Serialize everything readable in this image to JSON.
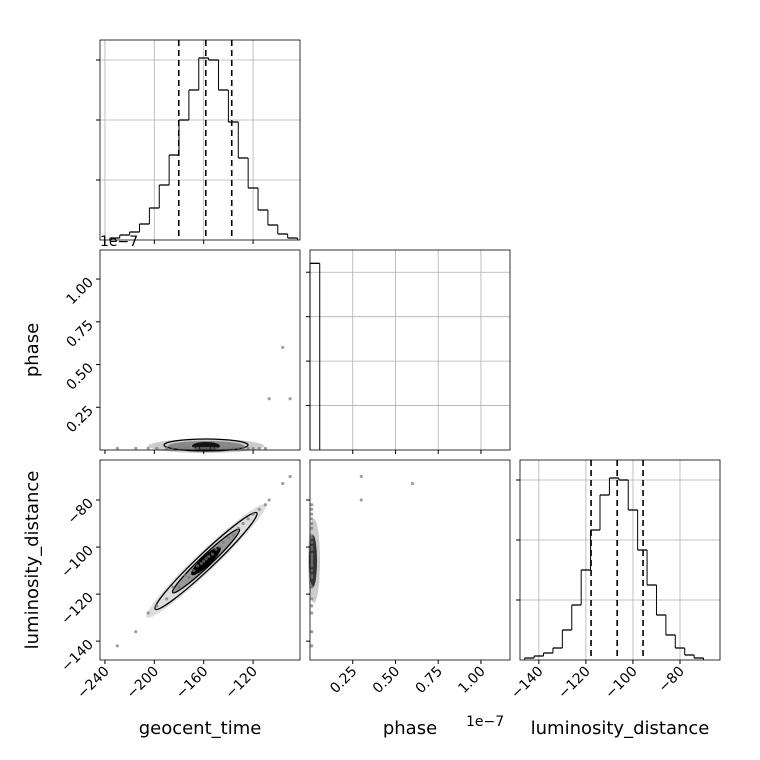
{
  "chart_data": {
    "type": "corner",
    "color": "#000000",
    "grid": true,
    "parameters": [
      {
        "name": "geocent_time",
        "lim": [
          -244,
          -82
        ],
        "ticks": [
          {
            "value": -240,
            "label": "−240"
          },
          {
            "value": -200,
            "label": "−200"
          },
          {
            "value": -160,
            "label": "−160"
          },
          {
            "value": -120,
            "label": "−120"
          }
        ]
      },
      {
        "name": "phase",
        "offset_label": "1e−7",
        "lim": [
          0,
          1.17
        ],
        "ticks": [
          {
            "value": 0.25,
            "label": "0.25"
          },
          {
            "value": 0.5,
            "label": "0.50"
          },
          {
            "value": 0.75,
            "label": "0.75"
          },
          {
            "value": 1.0,
            "label": "1.00"
          }
        ]
      },
      {
        "name": "luminosity_distance",
        "lim": [
          -148,
          -63
        ],
        "ticks": [
          {
            "value": -140,
            "label": "−140"
          },
          {
            "value": -120,
            "label": "−120"
          },
          {
            "value": -100,
            "label": "−100"
          },
          {
            "value": -80,
            "label": "−80"
          }
        ]
      }
    ],
    "histograms": [
      {
        "bins": [
          -236,
          -228,
          -220,
          -212,
          -204,
          -196,
          -188,
          -180,
          -172,
          -164,
          -156,
          -148,
          -140,
          -132,
          -124,
          -116,
          -108,
          -100,
          -92,
          -84
        ],
        "counts": [
          2,
          5,
          8,
          16,
          32,
          55,
          85,
          120,
          150,
          182,
          180,
          150,
          118,
          82,
          52,
          30,
          15,
          6,
          2
        ],
        "quantiles": [
          -180.2,
          -158.3,
          -137.3
        ],
        "ylim": [
          0,
          200
        ],
        "yticks": [
          60,
          120,
          180
        ]
      },
      {
        "bins": [
          0,
          0.057
        ],
        "counts": [
          4200
        ],
        "ylim": [
          0,
          4500
        ],
        "yticks": [
          1000,
          2000,
          3000,
          4000
        ]
      },
      {
        "bins": [
          -146,
          -142,
          -138,
          -134,
          -130,
          -126,
          -122,
          -118,
          -114,
          -110,
          -106,
          -102,
          -98,
          -94,
          -90,
          -86,
          -82,
          -78,
          -74,
          -70
        ],
        "counts": [
          2,
          4,
          7,
          12,
          30,
          55,
          90,
          130,
          165,
          182,
          180,
          150,
          110,
          75,
          45,
          25,
          12,
          5,
          2
        ],
        "quantiles": [
          -117.8,
          -106.7,
          -95.7
        ],
        "ylim": [
          0,
          200
        ],
        "yticks": [
          60,
          120,
          180
        ]
      }
    ],
    "samples": {
      "geocent_time": [
        -230,
        -215,
        -205,
        -198,
        -190,
        -185,
        -180,
        -175,
        -172,
        -168,
        -165,
        -162,
        -160,
        -158,
        -156,
        -153,
        -150,
        -147,
        -144,
        -140,
        -136,
        -132,
        -128,
        -124,
        -120,
        -115,
        -110,
        -107,
        -90,
        -96
      ],
      "phase": [
        0.01,
        0.01,
        0.01,
        0.01,
        0.01,
        0.01,
        0.01,
        0.01,
        0.01,
        0.01,
        0.01,
        0.01,
        0.01,
        0.01,
        0.01,
        0.01,
        0.01,
        0.01,
        0.01,
        0.01,
        0.01,
        0.01,
        0.01,
        0.01,
        0.01,
        0.01,
        0.01,
        0.3,
        0.3,
        0.6
      ],
      "luminosity_distance": [
        -142,
        -136,
        -128,
        -125,
        -122,
        -117,
        -117,
        -112,
        -113,
        -110,
        -108,
        -107,
        -106,
        -105,
        -104,
        -103,
        -101,
        -100,
        -98,
        -96,
        -95,
        -92,
        -90,
        -88,
        -86,
        -84,
        -82,
        -80,
        -70,
        -73
      ]
    }
  }
}
